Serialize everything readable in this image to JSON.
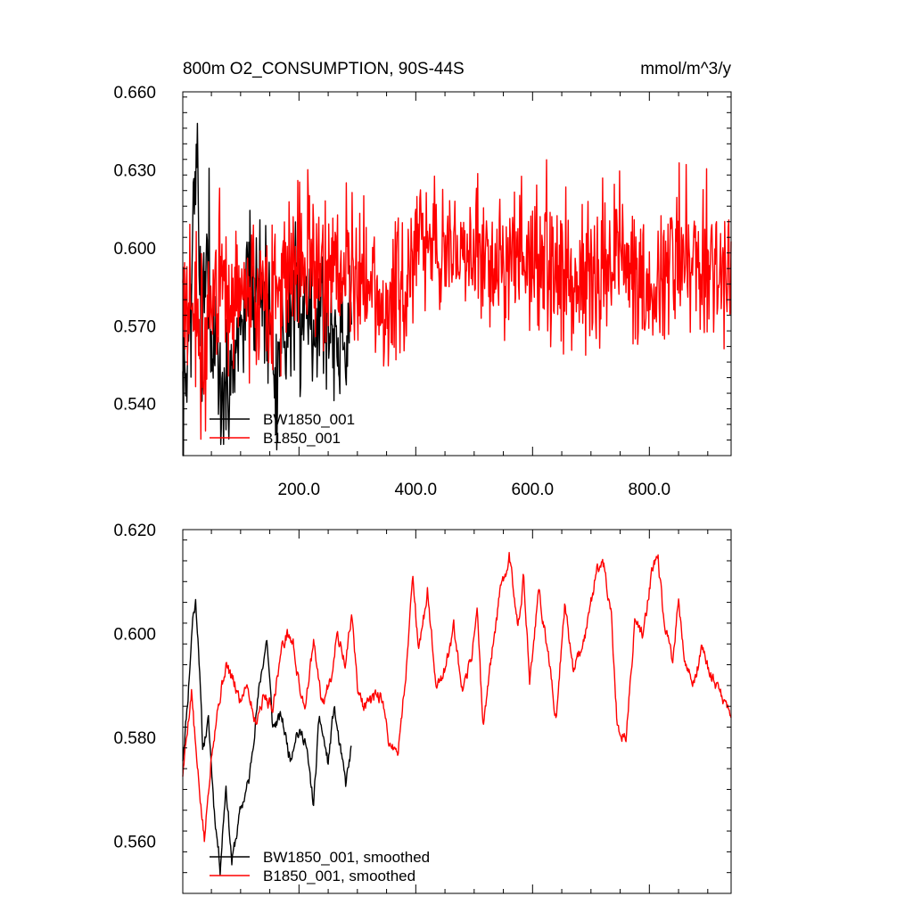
{
  "chart_data": [
    {
      "type": "line",
      "panel": "top",
      "title": "800m O2_CONSUMPTION, 90S-44S",
      "units_label": "mmol/m^3/y",
      "xlim": [
        1,
        940
      ],
      "ylim": [
        0.52,
        0.66
      ],
      "y_ticks": [
        0.66,
        0.63,
        0.6,
        0.57,
        0.54
      ],
      "y_tick_labels": [
        "0.660",
        "0.630",
        "0.600",
        "0.570",
        "0.540"
      ],
      "x_ticks": [
        200,
        400,
        600,
        800
      ],
      "x_tick_labels": [
        "200.0",
        "400.0",
        "600.0",
        "800.0"
      ],
      "grid": false,
      "legend_position": "bottom-left",
      "series": [
        {
          "name": "BW1850_001",
          "color": "#000000",
          "x_start": 1,
          "x_end": 290,
          "mean": 0.577,
          "amplitude": 0.014,
          "seed": 7,
          "anchors": [
            [
              5,
              0.545
            ],
            [
              15,
              0.575
            ],
            [
              22,
              0.63
            ],
            [
              26,
              0.645
            ],
            [
              30,
              0.565
            ],
            [
              40,
              0.6
            ],
            [
              55,
              0.555
            ],
            [
              70,
              0.542
            ],
            [
              90,
              0.56
            ],
            [
              110,
              0.585
            ],
            [
              140,
              0.585
            ],
            [
              160,
              0.56
            ],
            [
              200,
              0.578
            ],
            [
              240,
              0.575
            ],
            [
              270,
              0.565
            ],
            [
              290,
              0.568
            ]
          ]
        },
        {
          "name": "B1850_001",
          "color": "#ff0000",
          "x_start": 1,
          "x_end": 940,
          "mean": 0.592,
          "amplitude": 0.014,
          "seed": 3,
          "anchors": [
            [
              1,
              0.582
            ],
            [
              20,
              0.575
            ],
            [
              40,
              0.555
            ],
            [
              60,
              0.59
            ],
            [
              100,
              0.58
            ],
            [
              150,
              0.585
            ],
            [
              200,
              0.595
            ],
            [
              300,
              0.59
            ],
            [
              350,
              0.578
            ],
            [
              400,
              0.595
            ],
            [
              430,
              0.605
            ],
            [
              500,
              0.595
            ],
            [
              560,
              0.6
            ],
            [
              600,
              0.595
            ],
            [
              700,
              0.59
            ],
            [
              750,
              0.6
            ],
            [
              800,
              0.585
            ],
            [
              850,
              0.595
            ],
            [
              900,
              0.595
            ],
            [
              940,
              0.59
            ]
          ]
        }
      ]
    },
    {
      "type": "line",
      "panel": "bottom",
      "xlim": [
        1,
        940
      ],
      "ylim": [
        0.55,
        0.62
      ],
      "y_ticks": [
        0.62,
        0.6,
        0.58,
        0.56
      ],
      "y_tick_labels": [
        "0.620",
        "0.600",
        "0.580",
        "0.560"
      ],
      "grid": false,
      "legend_position": "bottom-left",
      "series": [
        {
          "name": "BW1850_001, smoothed",
          "color": "#000000",
          "x_start": 1,
          "x_end": 290,
          "amplitude": 0.002,
          "seed": 11,
          "anchors": [
            [
              1,
              0.576
            ],
            [
              10,
              0.588
            ],
            [
              18,
              0.603
            ],
            [
              23,
              0.606
            ],
            [
              28,
              0.598
            ],
            [
              35,
              0.578
            ],
            [
              45,
              0.583
            ],
            [
              55,
              0.566
            ],
            [
              65,
              0.555
            ],
            [
              75,
              0.571
            ],
            [
              85,
              0.556
            ],
            [
              100,
              0.566
            ],
            [
              115,
              0.572
            ],
            [
              125,
              0.583
            ],
            [
              135,
              0.592
            ],
            [
              145,
              0.599
            ],
            [
              155,
              0.582
            ],
            [
              170,
              0.584
            ],
            [
              185,
              0.576
            ],
            [
              195,
              0.581
            ],
            [
              210,
              0.58
            ],
            [
              225,
              0.567
            ],
            [
              235,
              0.584
            ],
            [
              250,
              0.575
            ],
            [
              260,
              0.586
            ],
            [
              270,
              0.578
            ],
            [
              280,
              0.571
            ],
            [
              290,
              0.578
            ]
          ]
        },
        {
          "name": "B1850_001, smoothed",
          "color": "#ff0000",
          "x_start": 1,
          "x_end": 940,
          "amplitude": 0.002,
          "seed": 5,
          "anchors": [
            [
              1,
              0.573
            ],
            [
              10,
              0.583
            ],
            [
              16,
              0.589
            ],
            [
              25,
              0.575
            ],
            [
              38,
              0.56
            ],
            [
              50,
              0.577
            ],
            [
              60,
              0.585
            ],
            [
              75,
              0.594
            ],
            [
              90,
              0.59
            ],
            [
              100,
              0.587
            ],
            [
              110,
              0.591
            ],
            [
              125,
              0.583
            ],
            [
              140,
              0.588
            ],
            [
              155,
              0.586
            ],
            [
              170,
              0.597
            ],
            [
              180,
              0.6
            ],
            [
              190,
              0.598
            ],
            [
              200,
              0.59
            ],
            [
              210,
              0.586
            ],
            [
              225,
              0.598
            ],
            [
              240,
              0.586
            ],
            [
              255,
              0.592
            ],
            [
              265,
              0.6
            ],
            [
              280,
              0.594
            ],
            [
              290,
              0.604
            ],
            [
              300,
              0.59
            ],
            [
              310,
              0.586
            ],
            [
              325,
              0.587
            ],
            [
              340,
              0.588
            ],
            [
              355,
              0.579
            ],
            [
              370,
              0.577
            ],
            [
              385,
              0.595
            ],
            [
              395,
              0.612
            ],
            [
              405,
              0.596
            ],
            [
              420,
              0.608
            ],
            [
              435,
              0.59
            ],
            [
              450,
              0.593
            ],
            [
              465,
              0.601
            ],
            [
              480,
              0.588
            ],
            [
              495,
              0.595
            ],
            [
              505,
              0.605
            ],
            [
              515,
              0.582
            ],
            [
              530,
              0.596
            ],
            [
              545,
              0.608
            ],
            [
              560,
              0.615
            ],
            [
              575,
              0.602
            ],
            [
              585,
              0.611
            ],
            [
              595,
              0.59
            ],
            [
              610,
              0.608
            ],
            [
              625,
              0.598
            ],
            [
              640,
              0.583
            ],
            [
              655,
              0.606
            ],
            [
              670,
              0.593
            ],
            [
              690,
              0.6
            ],
            [
              710,
              0.612
            ],
            [
              720,
              0.615
            ],
            [
              735,
              0.603
            ],
            [
              745,
              0.582
            ],
            [
              760,
              0.58
            ],
            [
              775,
              0.602
            ],
            [
              790,
              0.6
            ],
            [
              805,
              0.613
            ],
            [
              815,
              0.614
            ],
            [
              825,
              0.602
            ],
            [
              840,
              0.594
            ],
            [
              850,
              0.607
            ],
            [
              860,
              0.594
            ],
            [
              875,
              0.59
            ],
            [
              890,
              0.597
            ],
            [
              905,
              0.592
            ],
            [
              920,
              0.589
            ],
            [
              930,
              0.586
            ],
            [
              940,
              0.585
            ]
          ]
        }
      ]
    }
  ]
}
